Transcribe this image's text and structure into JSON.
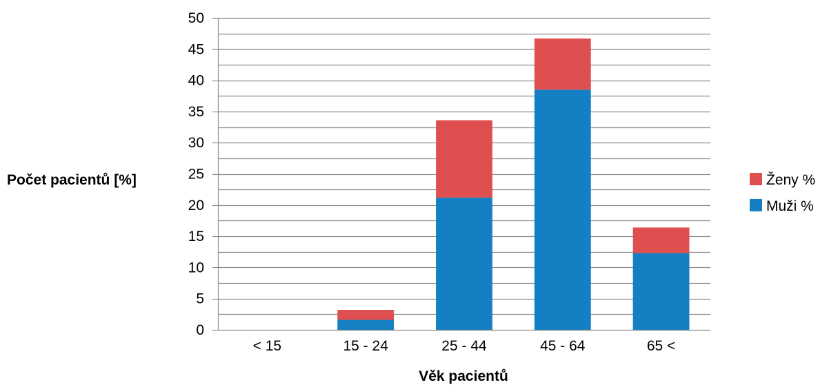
{
  "chart_data": {
    "type": "bar",
    "stacked": true,
    "categories": [
      "< 15",
      "15 - 24",
      "25 - 44",
      "45 - 64",
      "65 <"
    ],
    "series": [
      {
        "name": "Muži %",
        "color": "#1480c3",
        "values": [
          0,
          1.6,
          21.2,
          38.5,
          12.3
        ]
      },
      {
        "name": "Ženy %",
        "color": "#e04f50",
        "values": [
          0,
          1.6,
          12.4,
          8.2,
          4.1
        ]
      }
    ],
    "title": "",
    "xlabel": "Věk pacientů",
    "ylabel": "Počet pacientů [%]",
    "ylim": [
      0,
      50
    ],
    "yticks": [
      "0",
      "5",
      "10",
      "15",
      "20",
      "25",
      "30",
      "35",
      "40",
      "45",
      "50"
    ],
    "grid": true,
    "legend": {
      "position": "right",
      "order": [
        "Ženy %",
        "Muži %"
      ]
    }
  }
}
